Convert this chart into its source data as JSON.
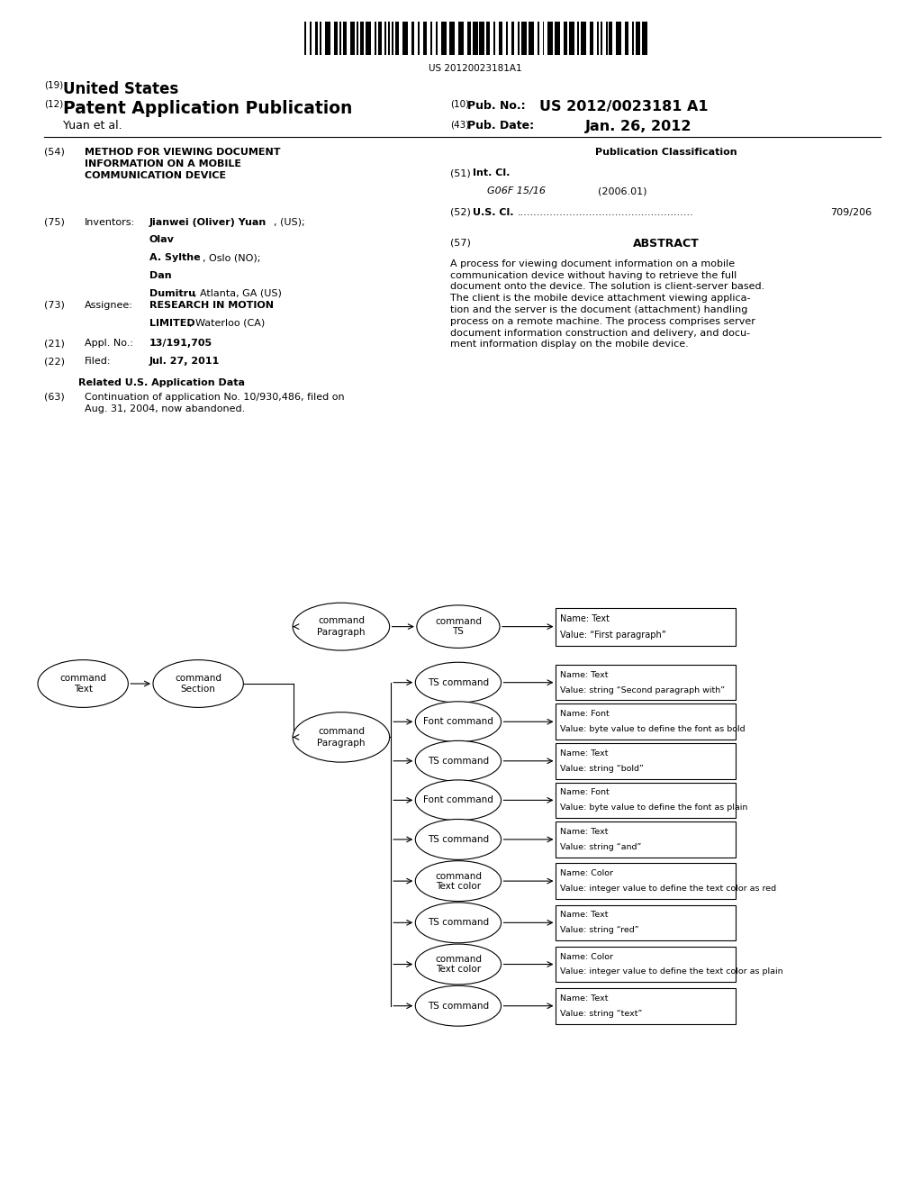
{
  "background_color": "#ffffff",
  "barcode_text": "US 20120023181A1",
  "header": {
    "number19": "(19)",
    "united_states": "United States",
    "number12": "(12)",
    "patent_app_pub": "Patent Application Publication",
    "number10": "(10)",
    "pub_no_label": "Pub. No.:",
    "pub_no_value": "US 2012/0023181 A1",
    "inventor_name": "Yuan et al.",
    "number43": "(43)",
    "pub_date_label": "Pub. Date:",
    "pub_date_value": "Jan. 26, 2012"
  },
  "left_col": {
    "item54_label": "(54)",
    "item54_title": "METHOD FOR VIEWING DOCUMENT\nINFORMATION ON A MOBILE\nCOMMUNICATION DEVICE",
    "item75_label": "(75)",
    "item75_key": "Inventors:",
    "item75_val": "Jianwei (Oliver) Yuan, (US); Olav\nA. Sylthe, Oslo (NO); Dan\nDumitru, Atlanta, GA (US)",
    "item73_label": "(73)",
    "item73_key": "Assignee:",
    "item73_val1": "RESEARCH IN MOTION",
    "item73_val2": "LIMITED",
    "item73_val3": ", Waterloo (CA)",
    "item21_label": "(21)",
    "item21_key": "Appl. No.:",
    "item21_val": "13/191,705",
    "item22_label": "(22)",
    "item22_key": "Filed:",
    "item22_val": "Jul. 27, 2011",
    "related_title": "Related U.S. Application Data",
    "item63_label": "(63)",
    "item63_val": "Continuation of application No. 10/930,486, filed on\nAug. 31, 2004, now abandoned."
  },
  "right_col": {
    "pub_class_title": "Publication Classification",
    "item51_label": "(51)",
    "item51_key": "Int. Cl.",
    "item51_class": "G06F 15/16",
    "item51_year": "(2006.01)",
    "item52_label": "(52)",
    "item52_key": "U.S. Cl.",
    "item52_dots": "......................................................",
    "item52_val": "709/206",
    "item57_label": "(57)",
    "abstract_title": "ABSTRACT",
    "abstract_text": "A process for viewing document information on a mobile\ncommunication device without having to retrieve the full\ndocument onto the device. The solution is client-server based.\nThe client is the mobile device attachment viewing applica-\ntion and the server is the document (attachment) handling\nprocess on a remote machine. The process comprises server\ndocument information construction and delivery, and docu-\nment information display on the mobile device."
  }
}
